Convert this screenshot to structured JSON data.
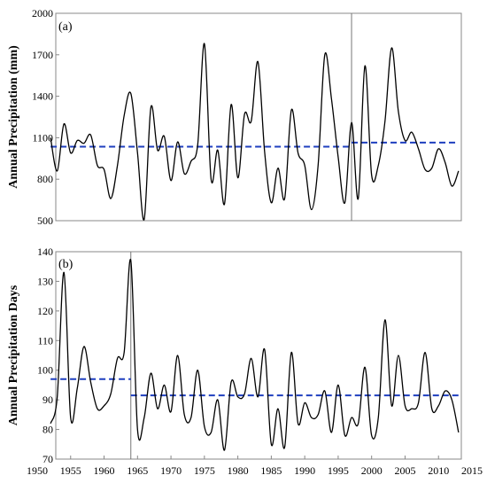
{
  "chart_data": [
    {
      "type": "line",
      "panel_label": "(a)",
      "ylabel": "Annual Precipitation (mm)",
      "xlim": [
        1952,
        2013
      ],
      "ylim": [
        500,
        2000
      ],
      "yticks": [
        500,
        800,
        1100,
        1400,
        1700,
        2000
      ],
      "grid": false,
      "change_point_year": 1997,
      "series": [
        {
          "x": [
            1952,
            1953,
            1954,
            1955,
            1956,
            1957,
            1958,
            1959,
            1960,
            1961,
            1962,
            1963,
            1964,
            1965,
            1966,
            1967,
            1968,
            1969,
            1970,
            1971,
            1972,
            1973,
            1974,
            1975,
            1976,
            1977,
            1978,
            1979,
            1980,
            1981,
            1982,
            1983,
            1984,
            1985,
            1986,
            1987,
            1988,
            1989,
            1990,
            1991,
            1992,
            1993,
            1994,
            1995,
            1996,
            1997,
            1998,
            1999,
            2000,
            2001,
            2002,
            2003,
            2004,
            2005,
            2006,
            2007,
            2008,
            2009,
            2010,
            2011,
            2012,
            2013
          ],
          "values": [
            1100,
            860,
            1200,
            990,
            1080,
            1060,
            1120,
            900,
            870,
            660,
            900,
            1260,
            1420,
            990,
            510,
            1320,
            1010,
            1110,
            790,
            1070,
            840,
            930,
            1050,
            1780,
            800,
            1010,
            620,
            1340,
            810,
            1270,
            1220,
            1650,
            1000,
            630,
            880,
            660,
            1300,
            990,
            900,
            580,
            900,
            1700,
            1380,
            960,
            630,
            1210,
            660,
            1620,
            830,
            900,
            1220,
            1750,
            1290,
            1080,
            1140,
            1020,
            870,
            880,
            1020,
            920,
            750,
            860
          ]
        }
      ],
      "means": [
        {
          "x0": 1952,
          "x1": 1997,
          "value": 1035
        },
        {
          "x0": 1997,
          "x1": 2013,
          "value": 1065
        }
      ]
    },
    {
      "type": "line",
      "panel_label": "(b)",
      "ylabel": "Annual Precipitation Days",
      "xlim": [
        1950,
        2015
      ],
      "ylim": [
        70,
        140
      ],
      "xticks": [
        1950,
        1955,
        1960,
        1965,
        1970,
        1975,
        1980,
        1985,
        1990,
        1995,
        2000,
        2005,
        2010,
        2015
      ],
      "yticks": [
        70,
        80,
        90,
        100,
        110,
        120,
        130,
        140
      ],
      "grid": false,
      "change_point_year": 1964,
      "series": [
        {
          "x": [
            1952,
            1953,
            1954,
            1955,
            1956,
            1957,
            1958,
            1959,
            1960,
            1961,
            1962,
            1963,
            1964,
            1965,
            1966,
            1967,
            1968,
            1969,
            1970,
            1971,
            1972,
            1973,
            1974,
            1975,
            1976,
            1977,
            1978,
            1979,
            1980,
            1981,
            1982,
            1983,
            1984,
            1985,
            1986,
            1987,
            1988,
            1989,
            1990,
            1991,
            1992,
            1993,
            1994,
            1995,
            1996,
            1997,
            1998,
            1999,
            2000,
            2001,
            2002,
            2003,
            2004,
            2005,
            2006,
            2007,
            2008,
            2009,
            2010,
            2011,
            2012,
            2013
          ],
          "values": [
            82,
            91,
            133,
            84,
            94,
            108,
            96,
            87,
            88,
            92,
            104,
            106,
            137,
            80,
            84,
            99,
            87,
            95,
            86,
            105,
            85,
            84,
            100,
            81,
            79,
            90,
            73,
            96,
            91,
            92,
            104,
            91,
            107,
            75,
            87,
            74,
            106,
            82,
            89,
            84,
            85,
            93,
            79,
            95,
            78,
            84,
            82,
            101,
            78,
            84,
            117,
            88,
            105,
            88,
            87,
            89,
            106,
            87,
            88,
            93,
            90,
            79
          ]
        }
      ],
      "means": [
        {
          "x0": 1952,
          "x1": 1964,
          "value": 97
        },
        {
          "x0": 1964,
          "x1": 2013,
          "value": 91.5
        }
      ]
    }
  ]
}
